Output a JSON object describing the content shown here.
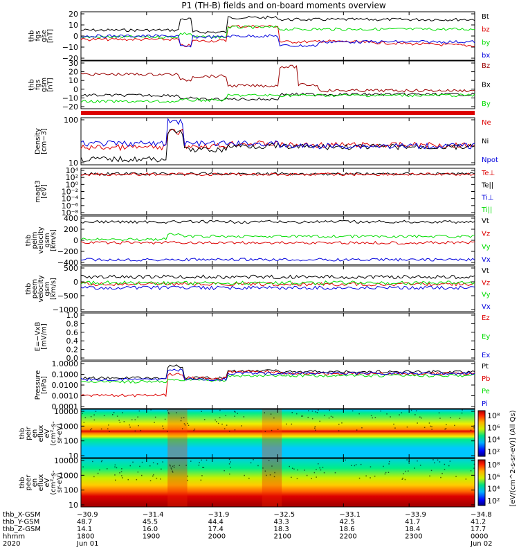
{
  "title": "P1 (TH-B) fields and on-board moments overview",
  "colors": {
    "black": "#000000",
    "red": "#dd0000",
    "green": "#00dd00",
    "blue": "#0000dd",
    "darkred": "#990000"
  },
  "panels": [
    {
      "ylabel": [
        "thb",
        "fgs",
        "gse",
        "[nT]"
      ],
      "yticks": [
        "20",
        "10",
        "0",
        "−10",
        "−20"
      ],
      "legend": [
        {
          "text": "Bt",
          "color": "black"
        },
        {
          "text": "bz",
          "color": "red"
        },
        {
          "text": "by",
          "color": "green"
        },
        {
          "text": "bx",
          "color": "blue"
        }
      ]
    },
    {
      "ylabel": [
        "thb",
        "fgs",
        "gsm",
        "[nT]"
      ],
      "yticks": [
        "30",
        "20",
        "10",
        "0",
        "−10",
        "−20"
      ],
      "legend": [
        {
          "text": "Bz",
          "color": "darkred"
        },
        {
          "text": "Bx",
          "color": "black"
        },
        {
          "text": "By",
          "color": "green"
        }
      ]
    },
    {
      "ylabel": [
        "Density",
        "[cm−3]"
      ],
      "yticks": [
        "100",
        "10"
      ],
      "legend": [
        {
          "text": "Ne",
          "color": "red"
        },
        {
          "text": "Ni",
          "color": "black"
        },
        {
          "text": "Npot",
          "color": "blue"
        }
      ]
    },
    {
      "ylabel": [
        "magt3",
        "[eV]"
      ],
      "yticks": [
        "10⁴",
        "10²",
        "10⁰",
        "10⁻²",
        "10⁻⁴",
        "10⁻⁶",
        "10⁻⁸"
      ],
      "legend": [
        {
          "text": "Te⊥",
          "color": "red"
        },
        {
          "text": "Te||",
          "color": "black"
        },
        {
          "text": "Ti⊥",
          "color": "blue"
        },
        {
          "text": "Ti||",
          "color": "green"
        }
      ]
    },
    {
      "ylabel": [
        "thb",
        "peim",
        "velocity",
        "gsm",
        "[km/s]"
      ],
      "yticks": [
        "400",
        "200",
        "0",
        "−200",
        "−400"
      ],
      "legend": [
        {
          "text": "Vt",
          "color": "black"
        },
        {
          "text": "Vz",
          "color": "red"
        },
        {
          "text": "Vy",
          "color": "green"
        },
        {
          "text": "Vx",
          "color": "blue"
        }
      ]
    },
    {
      "ylabel": [
        "thb",
        "peem",
        "velocity",
        "gsm",
        "[km/s]"
      ],
      "yticks": [
        "500",
        "0",
        "−500",
        "−1000"
      ],
      "legend": [
        {
          "text": "Vt",
          "color": "black"
        },
        {
          "text": "Vz",
          "color": "red"
        },
        {
          "text": "Vy",
          "color": "green"
        },
        {
          "text": "Vx",
          "color": "blue"
        }
      ]
    },
    {
      "ylabel": [
        "E=−VxB",
        "[mV/m]"
      ],
      "yticks": [
        "1.0",
        "0.8",
        "0.6",
        "0.4",
        "0.2",
        "0.0"
      ],
      "legend": [
        {
          "text": "Ez",
          "color": "red"
        },
        {
          "text": "Ey",
          "color": "green"
        },
        {
          "text": "Ex",
          "color": "blue"
        }
      ]
    },
    {
      "ylabel": [
        "Pressure",
        "[nPa]"
      ],
      "yticks": [
        "1.0000",
        "0.1000",
        "0.0100",
        "0.0010",
        "0.0001"
      ],
      "legend": [
        {
          "text": "Pt",
          "color": "black"
        },
        {
          "text": "Pb",
          "color": "red"
        },
        {
          "text": "Pe",
          "color": "green"
        },
        {
          "text": "Pi",
          "color": "blue"
        }
      ]
    },
    {
      "ylabel": [
        "thb",
        "peir",
        "en",
        "eflux",
        "eV",
        "(cm²-s-",
        "sr-eV)"
      ],
      "yticks": [
        "10000",
        "1000",
        "100",
        "10"
      ]
    },
    {
      "ylabel": [
        "thb",
        "peer",
        "en",
        "eflux",
        "eV",
        "(cm²-s-",
        "sr-eV)"
      ],
      "yticks": [
        "10000",
        "1000",
        "100",
        "10"
      ]
    }
  ],
  "colorbar": {
    "upper_ticks": [
      "10⁸",
      "10⁶",
      "10⁴",
      "10²"
    ],
    "lower_ticks": [
      "10⁸",
      "10⁶",
      "10⁴",
      "10²"
    ],
    "label": "[eV/(cm^2-s-sr-eV)] (All Qs)"
  },
  "ephemeris": {
    "labels": [
      "thb_X-GSM",
      "thb_Y-GSM",
      "thb_Z-GSM",
      "hhmm",
      "2020"
    ],
    "rows": [
      [
        "−30.9",
        "−31.4",
        "−31.9",
        "−32.5",
        "−33.1",
        "−33.9",
        "−34.8"
      ],
      [
        "48.7",
        "45.5",
        "44.4",
        "43.3",
        "42.5",
        "41.7",
        "41.2"
      ],
      [
        "14.1",
        "16.0",
        "17.4",
        "18.3",
        "18.6",
        "18.4",
        "17.7"
      ],
      [
        "1800",
        "1900",
        "2000",
        "2100",
        "2200",
        "2300",
        "0000"
      ],
      [
        "Jun 01",
        "",
        "",
        "",
        "",
        "",
        "Jun 02"
      ]
    ]
  },
  "chart_data": {
    "type": "line",
    "title": "P1 (TH-B) fields and on-board moments overview",
    "x": [
      "1800",
      "1900",
      "2000",
      "2100",
      "2200",
      "2300",
      "0000"
    ],
    "xlabel": "hhmm",
    "series": [
      {
        "name": "Bt",
        "panel": "thb fgs gse [nT]",
        "values": [
          3,
          15,
          15,
          14,
          14,
          14,
          14
        ]
      },
      {
        "name": "bz",
        "panel": "thb fgs gse [nT]",
        "values": [
          -2,
          -7,
          -10,
          -2,
          -9,
          -12,
          -15
        ]
      },
      {
        "name": "by",
        "panel": "thb fgs gse [nT]",
        "values": [
          -1,
          0,
          8,
          2,
          10,
          8,
          6
        ]
      },
      {
        "name": "bx",
        "panel": "thb fgs gse [nT]",
        "values": [
          2,
          -8,
          8,
          -7,
          -2,
          -3,
          -1
        ]
      },
      {
        "name": "Bz",
        "panel": "thb fgs gsm [nT]",
        "values": [
          16,
          12,
          9,
          23,
          10,
          2,
          -3
        ]
      },
      {
        "name": "Bx",
        "panel": "thb fgs gsm [nT]",
        "values": [
          -2,
          -6,
          -8,
          -6,
          -3,
          -4,
          -1
        ]
      },
      {
        "name": "By",
        "panel": "thb fgs gsm [nT]",
        "values": [
          -12,
          -10,
          -3,
          -4,
          -2,
          -1,
          0
        ]
      },
      {
        "name": "Ne",
        "panel": "Density [cm-3]",
        "values": [
          20,
          30,
          22,
          20,
          21,
          20,
          20
        ]
      },
      {
        "name": "Ni",
        "panel": "Density [cm-3]",
        "values": [
          6,
          50,
          20,
          20,
          22,
          18,
          18
        ]
      },
      {
        "name": "Npot",
        "panel": "Density [cm-3]",
        "values": [
          30,
          150,
          25,
          20,
          20,
          20,
          20
        ]
      },
      {
        "name": "Vt",
        "panel": "thb peim velocity gsm [km/s]",
        "values": [
          340,
          330,
          345,
          345,
          345,
          340,
          345
        ]
      },
      {
        "name": "Vz",
        "panel": "thb peim velocity gsm [km/s]",
        "values": [
          -10,
          30,
          0,
          0,
          -5,
          -10,
          0
        ]
      },
      {
        "name": "Vy",
        "panel": "thb peim velocity gsm [km/s]",
        "values": [
          20,
          60,
          80,
          40,
          60,
          40,
          40
        ]
      },
      {
        "name": "Vx",
        "panel": "thb peim velocity gsm [km/s]",
        "values": [
          -340,
          -320,
          -330,
          -320,
          -330,
          -330,
          -330
        ]
      },
      {
        "name": "Pt",
        "panel": "Pressure [nPa]",
        "values": [
          0.05,
          0.3,
          0.2,
          0.12,
          0.12,
          0.12,
          0.12
        ]
      },
      {
        "name": "Pb",
        "panel": "Pressure [nPa]",
        "values": [
          0.003,
          0.1,
          0.08,
          0.1,
          0.07,
          0.06,
          0.08
        ]
      },
      {
        "name": "Pe",
        "panel": "Pressure [nPa]",
        "values": [
          0.02,
          0.06,
          0.05,
          0.04,
          0.04,
          0.04,
          0.04
        ]
      },
      {
        "name": "Pi",
        "panel": "Pressure [nPa]",
        "values": [
          0.03,
          0.2,
          0.1,
          0.08,
          0.08,
          0.08,
          0.08
        ]
      }
    ]
  }
}
